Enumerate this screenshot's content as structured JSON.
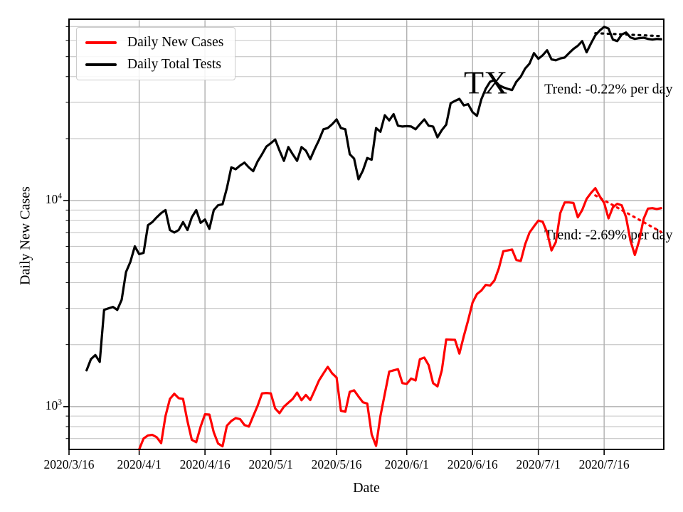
{
  "legend": {
    "items": [
      {
        "label": "Daily New Cases",
        "color": "#ff0000"
      },
      {
        "label": "Daily Total Tests",
        "color": "#000000"
      }
    ]
  },
  "chart_data": {
    "type": "line",
    "title": "",
    "x_axis": {
      "label": "Date",
      "start": "2020/3/16",
      "end": "2020/7/29",
      "tick_labels": [
        "2020/3/16",
        "2020/4/1",
        "2020/4/16",
        "2020/5/1",
        "2020/5/16",
        "2020/6/1",
        "2020/6/16",
        "2020/7/1",
        "2020/7/16"
      ]
    },
    "y_axis": {
      "label": "Daily New Cases",
      "scale": "log",
      "ylim": [
        620,
        76000
      ],
      "ticks": [
        {
          "text": "10^4",
          "value": 10000
        },
        {
          "text": "10^3",
          "value": 1000
        }
      ],
      "grid": "major and minor horizontal, major vertical"
    },
    "series": [
      {
        "name": "Daily New Cases",
        "color": "#ff0000",
        "start_date": "2020/4/1",
        "values": [
          620,
          700,
          725,
          730,
          710,
          665,
          900,
          1090,
          1155,
          1100,
          1090,
          850,
          690,
          672,
          800,
          918,
          915,
          750,
          662,
          642,
          808,
          852,
          880,
          870,
          815,
          800,
          900,
          1010,
          1160,
          1165,
          1160,
          980,
          930,
          1000,
          1045,
          1090,
          1170,
          1075,
          1140,
          1076,
          1200,
          1340,
          1450,
          1560,
          1450,
          1385,
          955,
          945,
          1180,
          1200,
          1120,
          1050,
          1035,
          733,
          645,
          900,
          1155,
          1480,
          1500,
          1520,
          1300,
          1290,
          1370,
          1340,
          1700,
          1730,
          1590,
          1300,
          1255,
          1500,
          2120,
          2115,
          2110,
          1810,
          2200,
          2625,
          3200,
          3520,
          3660,
          3900,
          3870,
          4100,
          4700,
          5680,
          5730,
          5790,
          5150,
          5100,
          6150,
          7000,
          7500,
          8000,
          7900,
          7000,
          5730,
          6300,
          8700,
          9800,
          9800,
          9750,
          8300,
          9000,
          10200,
          10900,
          11500,
          10500,
          9750,
          8200,
          9300,
          9650,
          9500,
          8300,
          6400,
          5450,
          6400,
          8150,
          9150,
          9200,
          9100,
          9200
        ]
      },
      {
        "name": "Daily Total Tests",
        "color": "#000000",
        "start_date": "2020/3/20",
        "values": [
          1500,
          1700,
          1780,
          1650,
          2950,
          3000,
          3050,
          2950,
          3300,
          4500,
          5050,
          6000,
          5500,
          5580,
          7600,
          7870,
          8300,
          8700,
          9000,
          7200,
          7000,
          7200,
          7870,
          7200,
          8300,
          9000,
          7800,
          8100,
          7300,
          9000,
          9500,
          9600,
          11500,
          14500,
          14200,
          14800,
          15300,
          14500,
          13900,
          15500,
          16800,
          18300,
          19000,
          19800,
          17500,
          15600,
          18200,
          16800,
          15600,
          18200,
          17500,
          15900,
          17800,
          19700,
          22200,
          22500,
          23500,
          24800,
          22500,
          22200,
          16800,
          16000,
          12700,
          14000,
          16100,
          15800,
          22500,
          21600,
          26000,
          24500,
          26300,
          23100,
          22900,
          23000,
          22900,
          22200,
          23500,
          24800,
          23100,
          22900,
          20300,
          22000,
          23400,
          29700,
          30500,
          31200,
          29000,
          29400,
          26900,
          25800,
          31000,
          34900,
          37800,
          38500,
          36400,
          35500,
          34900,
          34400,
          37800,
          40000,
          43800,
          46300,
          52000,
          48800,
          50800,
          53700,
          48500,
          48000,
          49000,
          49500,
          52000,
          54500,
          56500,
          59500,
          52500,
          58000,
          63500,
          67000,
          69800,
          68500,
          60500,
          59500,
          64000,
          65500,
          62000,
          61000,
          61500,
          61800,
          61000,
          60500,
          61000,
          60800
        ]
      }
    ],
    "trend_lines": [
      {
        "series": "Daily Total Tests",
        "label": "Trend: -0.22% per day",
        "pct_per_day": -0.22,
        "color": "#000000",
        "style": "dotted",
        "start_date": "2020/7/14",
        "start_value": 65000,
        "end_date": "2020/7/29",
        "end_value": 62900
      },
      {
        "series": "Daily New Cases",
        "label": "Trend: -2.69% per day",
        "pct_per_day": -2.69,
        "color": "#ff0000",
        "style": "dotted",
        "start_date": "2020/7/14",
        "start_value": 10600,
        "end_date": "2020/7/29",
        "end_value": 7050
      }
    ],
    "annotations": [
      {
        "text": "TX",
        "date": "2020/6/19",
        "value": 37500
      },
      {
        "text": "Trend: -0.22% per day",
        "date": "2020/7/17",
        "value": 34500
      },
      {
        "text": "Trend: -2.69% per day",
        "date": "2020/7/17",
        "value": 6760
      }
    ]
  }
}
